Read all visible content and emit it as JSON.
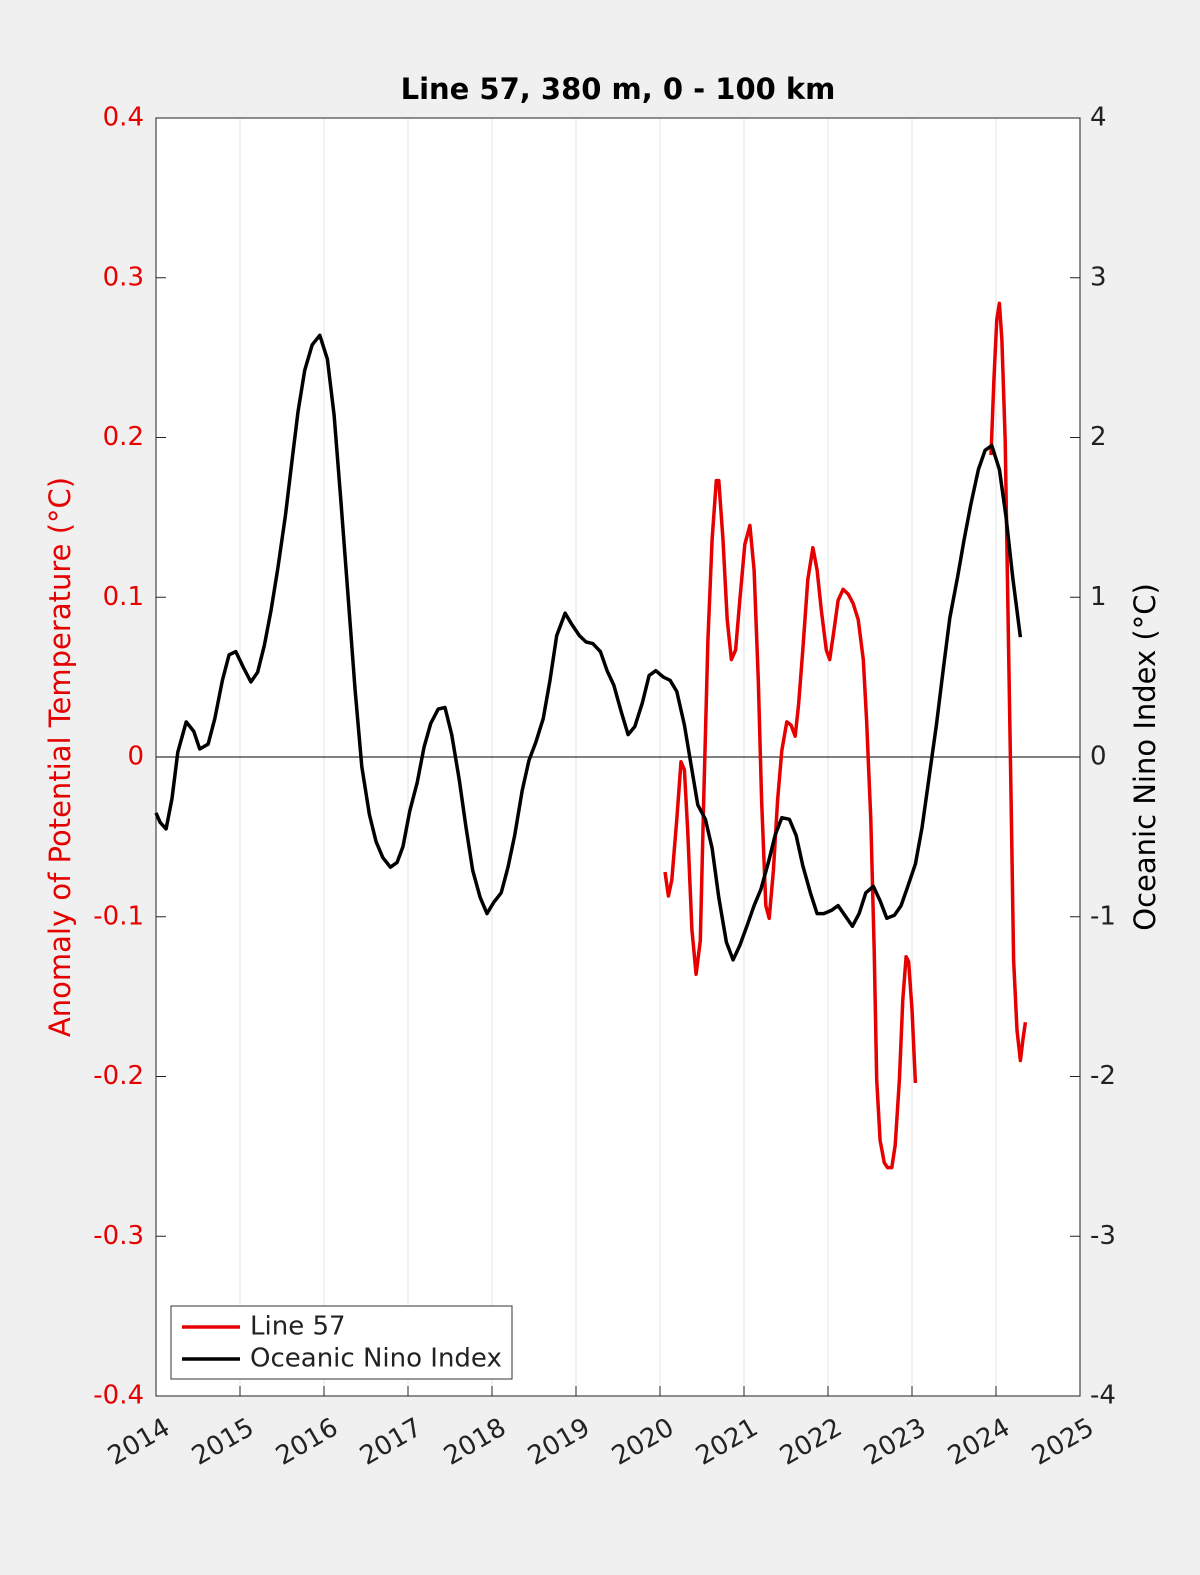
{
  "chart_data": {
    "type": "line",
    "title": "Line 57, 380 m, 0 - 100 km",
    "ylabel": "Anomaly of Potential Temperature (°C)",
    "y2label": "Oceanic Nino Index (°C)",
    "ylabel_color": "#e60000",
    "xlim": [
      2014,
      2025
    ],
    "xticks": [
      2014,
      2015,
      2016,
      2017,
      2018,
      2019,
      2020,
      2021,
      2022,
      2023,
      2024,
      2025
    ],
    "ylim": [
      -0.4,
      0.4
    ],
    "yticks": [
      -0.4,
      -0.3,
      -0.2,
      -0.1,
      0,
      0.1,
      0.2,
      0.3,
      0.4
    ],
    "y2lim": [
      -4,
      4
    ],
    "y2ticks": [
      -4,
      -3,
      -2,
      -1,
      0,
      1,
      2,
      3,
      4
    ],
    "xgrid": true,
    "zero_line": true,
    "legend": "lower left",
    "series": [
      {
        "name": "Line 57",
        "color": "#e60000",
        "axis": "y",
        "x": [
          2020.06,
          2020.1,
          2020.14,
          2020.2,
          2020.25,
          2020.29,
          2020.33,
          2020.38,
          2020.43,
          2020.48,
          2020.52,
          2020.57,
          2020.62,
          2020.67,
          2020.7,
          2020.75,
          2020.8,
          2020.85,
          2020.9,
          2020.95,
          2021.01,
          2021.07,
          2021.12,
          2021.17,
          2021.21,
          2021.26,
          2021.3,
          2021.35,
          2021.4,
          2021.45,
          2021.51,
          2021.56,
          2021.61,
          2021.65,
          2021.7,
          2021.76,
          2021.82,
          2021.87,
          2021.92,
          2021.98,
          2022.02,
          2022.07,
          2022.12,
          2022.18,
          2022.24,
          2022.3,
          2022.36,
          2022.42,
          2022.46,
          2022.51,
          2022.55,
          2022.58,
          2022.62,
          2022.67,
          2022.71,
          2022.76,
          2022.8,
          2022.85,
          2022.89,
          2022.93,
          2022.96,
          2023.0,
          2023.04,
          null,
          2023.94,
          2023.975,
          2024.01,
          2024.04,
          2024.07,
          2024.11,
          2024.14,
          2024.18,
          2024.21,
          2024.25,
          2024.29,
          2024.32,
          2024.35
        ],
        "values": [
          -0.072,
          -0.087,
          -0.077,
          -0.039,
          -0.003,
          -0.008,
          -0.046,
          -0.108,
          -0.136,
          -0.115,
          -0.027,
          0.073,
          0.136,
          0.173,
          0.173,
          0.136,
          0.086,
          0.061,
          0.067,
          0.098,
          0.133,
          0.145,
          0.117,
          0.048,
          -0.027,
          -0.093,
          -0.101,
          -0.071,
          -0.027,
          0.004,
          0.022,
          0.02,
          0.013,
          0.033,
          0.067,
          0.111,
          0.131,
          0.117,
          0.092,
          0.067,
          0.061,
          0.079,
          0.098,
          0.105,
          0.102,
          0.096,
          0.086,
          0.061,
          0.023,
          -0.039,
          -0.121,
          -0.202,
          -0.24,
          -0.254,
          -0.257,
          -0.257,
          -0.243,
          -0.202,
          -0.152,
          -0.125,
          -0.128,
          -0.158,
          -0.204,
          null,
          0.189,
          0.236,
          0.274,
          0.284,
          0.261,
          0.198,
          0.098,
          -0.027,
          -0.127,
          -0.171,
          -0.19,
          -0.177,
          -0.166
        ]
      },
      {
        "name": "Oceanic Nino Index",
        "color": "#000000",
        "axis": "y2",
        "x": [
          2014.0,
          2014.05,
          2014.12,
          2014.19,
          2014.26,
          2014.36,
          2014.45,
          2014.52,
          2014.62,
          2014.7,
          2014.79,
          2014.87,
          2014.95,
          2015.04,
          2015.13,
          2015.21,
          2015.29,
          2015.37,
          2015.45,
          2015.54,
          2015.62,
          2015.69,
          2015.77,
          2015.86,
          2015.95,
          2016.04,
          2016.12,
          2016.2,
          2016.29,
          2016.37,
          2016.45,
          2016.54,
          2016.62,
          2016.7,
          2016.79,
          2016.87,
          2016.94,
          2017.02,
          2017.11,
          2017.19,
          2017.27,
          2017.36,
          2017.44,
          2017.52,
          2017.61,
          2017.69,
          2017.77,
          2017.86,
          2017.94,
          2018.02,
          2018.11,
          2018.19,
          2018.27,
          2018.36,
          2018.44,
          2018.52,
          2018.61,
          2018.69,
          2018.77,
          2018.87,
          2018.95,
          2019.04,
          2019.12,
          2019.2,
          2019.29,
          2019.37,
          2019.45,
          2019.54,
          2019.62,
          2019.7,
          2019.79,
          2019.87,
          2019.95,
          2020.04,
          2020.12,
          2020.2,
          2020.29,
          2020.37,
          2020.45,
          2020.54,
          2020.62,
          2020.7,
          2020.79,
          2020.87,
          2020.95,
          2021.04,
          2021.12,
          2021.2,
          2021.29,
          2021.37,
          2021.45,
          2021.54,
          2021.62,
          2021.7,
          2021.79,
          2021.87,
          2021.95,
          2022.04,
          2022.12,
          2022.2,
          2022.29,
          2022.37,
          2022.45,
          2022.54,
          2022.62,
          2022.7,
          2022.79,
          2022.87,
          2022.95,
          2023.04,
          2023.12,
          2023.2,
          2023.29,
          2023.37,
          2023.45,
          2023.54,
          2023.62,
          2023.7,
          2023.79,
          2023.87,
          2023.95,
          2024.04,
          2024.12,
          2024.2,
          2024.29
        ],
        "values": [
          -0.35,
          -0.41,
          -0.45,
          -0.26,
          0.03,
          0.22,
          0.16,
          0.05,
          0.08,
          0.24,
          0.48,
          0.64,
          0.66,
          0.56,
          0.47,
          0.53,
          0.7,
          0.92,
          1.18,
          1.51,
          1.86,
          2.16,
          2.42,
          2.58,
          2.64,
          2.49,
          2.14,
          1.61,
          0.98,
          0.42,
          -0.06,
          -0.36,
          -0.53,
          -0.63,
          -0.69,
          -0.66,
          -0.56,
          -0.34,
          -0.16,
          0.06,
          0.21,
          0.3,
          0.31,
          0.14,
          -0.14,
          -0.44,
          -0.71,
          -0.88,
          -0.98,
          -0.91,
          -0.85,
          -0.69,
          -0.49,
          -0.21,
          -0.02,
          0.09,
          0.24,
          0.48,
          0.76,
          0.9,
          0.83,
          0.76,
          0.72,
          0.71,
          0.66,
          0.54,
          0.45,
          0.28,
          0.14,
          0.19,
          0.34,
          0.51,
          0.54,
          0.5,
          0.48,
          0.41,
          0.2,
          -0.05,
          -0.3,
          -0.39,
          -0.57,
          -0.88,
          -1.16,
          -1.27,
          -1.18,
          -1.05,
          -0.93,
          -0.83,
          -0.66,
          -0.49,
          -0.38,
          -0.39,
          -0.49,
          -0.68,
          -0.85,
          -0.98,
          -0.98,
          -0.96,
          -0.93,
          -0.99,
          -1.06,
          -0.98,
          -0.85,
          -0.81,
          -0.9,
          -1.01,
          -0.99,
          -0.93,
          -0.81,
          -0.67,
          -0.44,
          -0.14,
          0.2,
          0.54,
          0.87,
          1.12,
          1.36,
          1.58,
          1.8,
          1.92,
          1.95,
          1.8,
          1.5,
          1.12,
          0.75
        ]
      }
    ]
  }
}
